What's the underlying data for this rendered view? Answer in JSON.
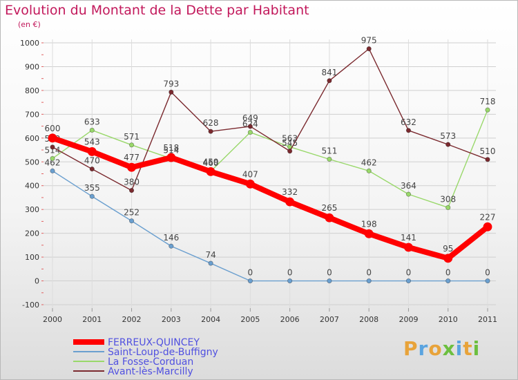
{
  "title": "Evolution du Montant de la Dette par Habitant",
  "unit": "(en €)",
  "brand": {
    "name": "Proxiti",
    "letters": [
      {
        "ch": "P",
        "color": "#e8a33a"
      },
      {
        "ch": "r",
        "color": "#5aa4e0"
      },
      {
        "ch": "o",
        "color": "#e8a33a"
      },
      {
        "ch": "x",
        "color": "#6cbf3f"
      },
      {
        "ch": "i",
        "color": "#5aa4e0"
      },
      {
        "ch": "t",
        "color": "#e8a33a"
      },
      {
        "ch": "i",
        "color": "#6cbf3f"
      }
    ]
  },
  "chart_data": {
    "type": "line",
    "title": "Evolution du Montant de la Dette par Habitant",
    "ylabel": "(en €)",
    "ylim": [
      -100,
      1000
    ],
    "yticks": [
      -100,
      0,
      100,
      200,
      300,
      400,
      500,
      600,
      700,
      800,
      900,
      1000
    ],
    "x": [
      "2000",
      "2001",
      "2002",
      "2003",
      "2004",
      "2005",
      "2006",
      "2007",
      "2008",
      "2009",
      "2010",
      "2011"
    ],
    "legend_position": "bottom-left",
    "series": [
      {
        "name": "FERREUX-QUINCEY",
        "color": "#ff0000",
        "values": [
          600,
          543,
          477,
          518,
          459,
          407,
          332,
          265,
          198,
          141,
          95,
          227
        ]
      },
      {
        "name": "Saint-Loup-de-Buffigny",
        "color": "#6a9fcf",
        "values": [
          462,
          355,
          252,
          146,
          74,
          0,
          0,
          0,
          0,
          0,
          0,
          0
        ]
      },
      {
        "name": "La Fosse-Corduan",
        "color": "#99d86a",
        "values": [
          514,
          633,
          571,
          514,
          460,
          624,
          563,
          511,
          462,
          364,
          308,
          718
        ]
      },
      {
        "name": "Avant-lès-Marcilly",
        "color": "#7b2a2f",
        "values": [
          562,
          470,
          380,
          793,
          628,
          649,
          545,
          841,
          975,
          632,
          573,
          510
        ]
      }
    ]
  }
}
